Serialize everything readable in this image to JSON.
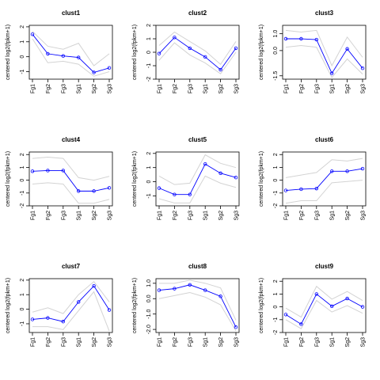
{
  "chart_data": [
    {
      "type": "line",
      "title": "clust1",
      "y_label": "centered log2(fpkm+1)",
      "categories": [
        "Fg1",
        "Fg2",
        "Fg3",
        "Sg1",
        "Sg2",
        "Sg3"
      ],
      "ylim": [
        -1.5,
        2.1
      ],
      "yticks": [
        -1,
        0,
        1,
        2
      ],
      "series": [
        {
          "color": "#d3d3d3",
          "values": [
            1.7,
            0.7,
            0.5,
            0.9,
            -0.6,
            0.2
          ]
        },
        {
          "color": "#d3d3d3",
          "values": [
            1.2,
            -0.4,
            -0.3,
            -0.5,
            -1.3,
            -1.0
          ]
        },
        {
          "color": "#0000ff",
          "values": [
            1.5,
            0.2,
            0.05,
            -0.05,
            -1.05,
            -0.75
          ]
        }
      ]
    },
    {
      "type": "line",
      "title": "clust2",
      "y_label": "centered log2(fpkm+1)",
      "categories": [
        "Fg1",
        "Fg2",
        "Fg3",
        "Sg1",
        "Sg2",
        "Sg3"
      ],
      "ylim": [
        -2,
        2
      ],
      "yticks": [
        -2,
        -1,
        0,
        1,
        2
      ],
      "series": [
        {
          "color": "#d3d3d3",
          "values": [
            0.5,
            1.5,
            0.8,
            0.1,
            -0.9,
            0.8
          ]
        },
        {
          "color": "#d3d3d3",
          "values": [
            -0.6,
            0.7,
            -0.2,
            -0.8,
            -1.6,
            0.0
          ]
        },
        {
          "color": "#0000ff",
          "values": [
            -0.1,
            1.1,
            0.3,
            -0.35,
            -1.3,
            0.3
          ]
        }
      ]
    },
    {
      "type": "line",
      "title": "clust3",
      "y_label": "centered log2(fpkm+1)",
      "categories": [
        "Fg1",
        "Fg2",
        "Fg3",
        "Sg1",
        "Sg2",
        "Sg3"
      ],
      "ylim": [
        -1.7,
        1.5
      ],
      "yticks": [
        {
          "value": -1.5,
          "label": "-1.5"
        },
        {
          "value": 0,
          "label": "0.0"
        },
        {
          "value": 1,
          "label": "1.0"
        }
      ],
      "series": [
        {
          "color": "#d3d3d3",
          "values": [
            1.2,
            1.1,
            1.2,
            -0.9,
            0.8,
            -0.4
          ]
        },
        {
          "color": "#d3d3d3",
          "values": [
            0.2,
            0.3,
            0.2,
            -1.6,
            -0.5,
            -1.4
          ]
        },
        {
          "color": "#0000ff",
          "values": [
            0.7,
            0.7,
            0.65,
            -1.35,
            0.1,
            -1.05
          ]
        }
      ]
    },
    {
      "type": "line",
      "title": "clust4",
      "y_label": "centered log2(fpkm+1)",
      "categories": [
        "Fg1",
        "Fg2",
        "Fg3",
        "Sg1",
        "Sg2",
        "Sg3"
      ],
      "ylim": [
        -2,
        2.2
      ],
      "yticks": [
        -2,
        -1,
        0,
        1,
        2
      ],
      "series": [
        {
          "color": "#d3d3d3",
          "values": [
            1.7,
            1.8,
            1.7,
            0.2,
            0.0,
            0.3
          ]
        },
        {
          "color": "#d3d3d3",
          "values": [
            -0.3,
            -0.2,
            -0.3,
            -1.8,
            -1.8,
            -1.5
          ]
        },
        {
          "color": "#0000ff",
          "values": [
            0.7,
            0.75,
            0.75,
            -0.85,
            -0.85,
            -0.6
          ]
        }
      ]
    },
    {
      "type": "line",
      "title": "clust5",
      "y_label": "centered log2(fpkm+1)",
      "categories": [
        "Fg1",
        "Fg2",
        "Fg3",
        "Sg1",
        "Sg2",
        "Sg3"
      ],
      "ylim": [
        -1.7,
        2.1
      ],
      "yticks": [
        -1,
        0,
        1,
        2
      ],
      "series": [
        {
          "color": "#d3d3d3",
          "values": [
            0.4,
            -0.2,
            -0.1,
            1.9,
            1.3,
            1.0
          ]
        },
        {
          "color": "#d3d3d3",
          "values": [
            -1.2,
            -1.5,
            -1.5,
            0.4,
            -0.1,
            -0.4
          ]
        },
        {
          "color": "#0000ff",
          "values": [
            -0.45,
            -0.9,
            -0.9,
            1.25,
            0.6,
            0.3
          ]
        }
      ]
    },
    {
      "type": "line",
      "title": "clust6",
      "y_label": "centered log2(fpkm+1)",
      "categories": [
        "Fg1",
        "Fg2",
        "Fg3",
        "Sg1",
        "Sg2",
        "Sg3"
      ],
      "ylim": [
        -2,
        2.2
      ],
      "yticks": [
        -2,
        -1,
        0,
        1,
        2
      ],
      "series": [
        {
          "color": "#d3d3d3",
          "values": [
            0.2,
            0.4,
            0.6,
            1.6,
            1.5,
            1.7
          ]
        },
        {
          "color": "#d3d3d3",
          "values": [
            -1.8,
            -1.6,
            -1.6,
            -0.2,
            -0.1,
            0.0
          ]
        },
        {
          "color": "#0000ff",
          "values": [
            -0.8,
            -0.7,
            -0.65,
            0.7,
            0.7,
            0.9
          ]
        }
      ]
    },
    {
      "type": "line",
      "title": "clust7",
      "y_label": "centered log2(fpkm+1)",
      "categories": [
        "Fg1",
        "Fg2",
        "Fg3",
        "Sg1",
        "Sg2",
        "Sg3"
      ],
      "ylim": [
        -1.6,
        2.1
      ],
      "yticks": [
        -1,
        0,
        1,
        2
      ],
      "series": [
        {
          "color": "#d3d3d3",
          "values": [
            -0.2,
            0.1,
            -0.3,
            1.0,
            1.9,
            0.5
          ]
        },
        {
          "color": "#d3d3d3",
          "values": [
            -1.2,
            -1.2,
            -1.4,
            -0.1,
            1.2,
            -1.5
          ]
        },
        {
          "color": "#0000ff",
          "values": [
            -0.7,
            -0.6,
            -0.85,
            0.5,
            1.6,
            -0.05
          ]
        }
      ]
    },
    {
      "type": "line",
      "title": "clust8",
      "y_label": "centered log2(fpkm+1)",
      "categories": [
        "Fg1",
        "Fg2",
        "Fg3",
        "Sg1",
        "Sg2",
        "Sg3"
      ],
      "ylim": [
        -2.2,
        1.3
      ],
      "yticks": [
        {
          "value": -2,
          "label": "-2.0"
        },
        {
          "value": -1,
          "label": "-1.0"
        },
        {
          "value": 0,
          "label": "0.0"
        },
        {
          "value": 1,
          "label": "1.0"
        }
      ],
      "series": [
        {
          "color": "#d3d3d3",
          "values": [
            1.0,
            1.0,
            1.2,
            1.0,
            0.7,
            -1.4
          ]
        },
        {
          "color": "#d3d3d3",
          "values": [
            0.0,
            0.2,
            0.4,
            0.1,
            -0.4,
            -2.1
          ]
        },
        {
          "color": "#0000ff",
          "values": [
            0.55,
            0.65,
            0.9,
            0.55,
            0.15,
            -1.85
          ]
        }
      ]
    },
    {
      "type": "line",
      "title": "clust9",
      "y_label": "centered log2(fpkm+1)",
      "categories": [
        "Fg1",
        "Fg2",
        "Fg3",
        "Sg1",
        "Sg2",
        "Sg3"
      ],
      "ylim": [
        -2,
        2.2
      ],
      "yticks": [
        -2,
        -1,
        0,
        1,
        2
      ],
      "series": [
        {
          "color": "#d3d3d3",
          "values": [
            -0.1,
            -0.8,
            1.6,
            0.6,
            1.2,
            0.5
          ]
        },
        {
          "color": "#d3d3d3",
          "values": [
            -1.0,
            -1.7,
            0.5,
            -0.4,
            0.1,
            -0.5
          ]
        },
        {
          "color": "#0000ff",
          "values": [
            -0.6,
            -1.35,
            1.0,
            0.05,
            0.65,
            0.0
          ]
        }
      ]
    }
  ]
}
